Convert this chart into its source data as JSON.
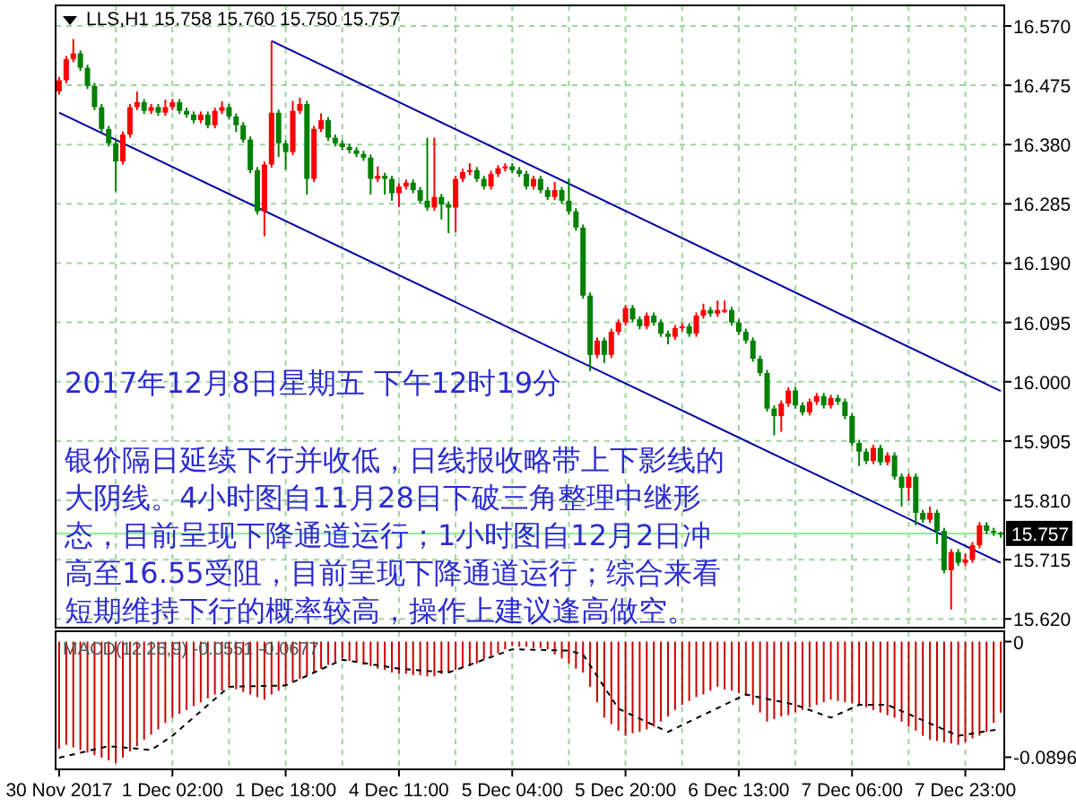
{
  "chart_data": [
    {
      "type": "candlestick",
      "title": "LLS,H1  15.758 15.760 15.750 15.757",
      "categories": [
        null,
        null,
        null,
        null,
        null,
        null,
        null,
        null,
        null,
        null,
        null,
        null,
        null,
        null,
        null,
        null,
        null,
        null,
        null,
        null,
        null,
        null,
        null,
        null,
        null,
        null,
        null,
        null,
        null,
        null,
        null,
        null,
        null,
        null,
        null,
        null,
        null,
        null,
        null,
        null,
        null,
        null,
        null,
        null,
        null,
        null,
        null,
        null,
        null,
        null,
        null,
        null,
        null,
        null,
        null,
        null,
        null,
        null,
        null,
        null,
        null,
        null,
        null,
        null,
        null,
        null,
        null,
        null,
        null,
        null,
        null,
        null,
        null,
        null,
        null,
        null,
        null,
        null,
        null,
        null,
        null,
        null,
        null,
        null,
        null,
        null,
        null,
        null,
        null,
        null,
        null,
        null,
        null,
        null,
        null,
        null,
        null,
        null,
        null,
        null,
        null,
        null,
        null,
        null,
        null,
        null,
        null,
        null,
        null,
        null,
        null,
        null,
        null,
        null,
        null,
        null,
        null,
        null,
        null,
        null,
        null,
        null,
        null,
        null,
        null,
        null,
        null,
        null,
        null,
        null,
        null,
        null,
        null,
        null
      ],
      "ohlc": [
        [
          16.465,
          16.488,
          16.46,
          16.483
        ],
        [
          16.483,
          16.522,
          16.478,
          16.517
        ],
        [
          16.517,
          16.549,
          16.512,
          16.526
        ],
        [
          16.526,
          16.531,
          16.498,
          16.503
        ],
        [
          16.503,
          16.508,
          16.469,
          16.474
        ],
        [
          16.474,
          16.479,
          16.435,
          16.44
        ],
        [
          16.44,
          16.445,
          16.4,
          16.405
        ],
        [
          16.405,
          16.41,
          16.377,
          16.382
        ],
        [
          16.382,
          16.387,
          16.305,
          16.353
        ],
        [
          16.353,
          16.401,
          16.348,
          16.396
        ],
        [
          16.396,
          16.445,
          16.391,
          16.44
        ],
        [
          16.44,
          16.465,
          16.435,
          16.448
        ],
        [
          16.448,
          16.453,
          16.429,
          16.434
        ],
        [
          16.434,
          16.445,
          16.429,
          16.44
        ],
        [
          16.44,
          16.445,
          16.426,
          16.431
        ],
        [
          16.431,
          16.452,
          16.426,
          16.44
        ],
        [
          16.44,
          16.453,
          16.435,
          16.448
        ],
        [
          16.448,
          16.453,
          16.429,
          16.434
        ],
        [
          16.434,
          16.439,
          16.423,
          16.428
        ],
        [
          16.428,
          16.433,
          16.414,
          16.419
        ],
        [
          16.419,
          16.433,
          16.414,
          16.428
        ],
        [
          16.428,
          16.433,
          16.406,
          16.411
        ],
        [
          16.411,
          16.439,
          16.406,
          16.434
        ],
        [
          16.434,
          16.449,
          16.429,
          16.44
        ],
        [
          16.44,
          16.445,
          16.42,
          16.425
        ],
        [
          16.425,
          16.43,
          16.4,
          16.411
        ],
        [
          16.411,
          16.416,
          16.383,
          16.388
        ],
        [
          16.388,
          16.393,
          16.334,
          16.339
        ],
        [
          16.339,
          16.344,
          16.268,
          16.273
        ],
        [
          16.273,
          16.353,
          16.233,
          16.348
        ],
        [
          16.348,
          16.546,
          16.343,
          16.431
        ],
        [
          16.431,
          16.436,
          16.36,
          16.382
        ],
        [
          16.382,
          16.387,
          16.34,
          16.368
        ],
        [
          16.368,
          16.45,
          16.363,
          16.434
        ],
        [
          16.434,
          16.455,
          16.429,
          16.445
        ],
        [
          16.445,
          16.45,
          16.3,
          16.325
        ],
        [
          16.325,
          16.41,
          16.32,
          16.405
        ],
        [
          16.405,
          16.43,
          16.4,
          16.419
        ],
        [
          16.419,
          16.424,
          16.386,
          16.391
        ],
        [
          16.391,
          16.396,
          16.377,
          16.382
        ],
        [
          16.382,
          16.387,
          16.371,
          16.376
        ],
        [
          16.376,
          16.381,
          16.366,
          16.371
        ],
        [
          16.371,
          16.376,
          16.36,
          16.365
        ],
        [
          16.365,
          16.37,
          16.354,
          16.359
        ],
        [
          16.359,
          16.364,
          16.3,
          16.325
        ],
        [
          16.325,
          16.345,
          16.32,
          16.33
        ],
        [
          16.33,
          16.335,
          16.3,
          16.325
        ],
        [
          16.325,
          16.33,
          16.29,
          16.302
        ],
        [
          16.302,
          16.318,
          16.28,
          16.313
        ],
        [
          16.313,
          16.324,
          16.308,
          16.319
        ],
        [
          16.319,
          16.324,
          16.302,
          16.307
        ],
        [
          16.307,
          16.312,
          16.285,
          16.29
        ],
        [
          16.29,
          16.391,
          16.274,
          16.279
        ],
        [
          16.279,
          16.391,
          16.274,
          16.296
        ],
        [
          16.296,
          16.301,
          16.26,
          16.284
        ],
        [
          16.284,
          16.289,
          16.238,
          16.279
        ],
        [
          16.279,
          16.33,
          16.24,
          16.325
        ],
        [
          16.325,
          16.341,
          16.32,
          16.336
        ],
        [
          16.336,
          16.35,
          16.331,
          16.339
        ],
        [
          16.339,
          16.344,
          16.32,
          16.325
        ],
        [
          16.325,
          16.33,
          16.308,
          16.313
        ],
        [
          16.313,
          16.338,
          16.308,
          16.333
        ],
        [
          16.333,
          16.347,
          16.328,
          16.342
        ],
        [
          16.342,
          16.35,
          16.337,
          16.345
        ],
        [
          16.345,
          16.35,
          16.334,
          16.339
        ],
        [
          16.339,
          16.344,
          16.328,
          16.333
        ],
        [
          16.333,
          16.338,
          16.308,
          16.313
        ],
        [
          16.313,
          16.33,
          16.308,
          16.325
        ],
        [
          16.325,
          16.33,
          16.302,
          16.307
        ],
        [
          16.307,
          16.312,
          16.291,
          16.296
        ],
        [
          16.296,
          16.32,
          16.291,
          16.307
        ],
        [
          16.307,
          16.312,
          16.285,
          16.29
        ],
        [
          16.29,
          16.325,
          16.268,
          16.273
        ],
        [
          16.273,
          16.278,
          16.242,
          16.247
        ],
        [
          16.247,
          16.252,
          16.133,
          16.138
        ],
        [
          16.138,
          16.143,
          16.017,
          16.043
        ],
        [
          16.043,
          16.071,
          16.038,
          16.066
        ],
        [
          16.066,
          16.071,
          16.03,
          16.043
        ],
        [
          16.043,
          16.085,
          16.038,
          16.08
        ],
        [
          16.08,
          16.1,
          16.075,
          16.095
        ],
        [
          16.095,
          16.123,
          16.09,
          16.118
        ],
        [
          16.118,
          16.123,
          16.095,
          16.1
        ],
        [
          16.1,
          16.105,
          16.084,
          16.089
        ],
        [
          16.089,
          16.111,
          16.084,
          16.106
        ],
        [
          16.106,
          16.111,
          16.09,
          16.095
        ],
        [
          16.095,
          16.1,
          16.072,
          16.077
        ],
        [
          16.077,
          16.082,
          16.06,
          16.072
        ],
        [
          16.072,
          16.091,
          16.067,
          16.086
        ],
        [
          16.086,
          16.094,
          16.081,
          16.089
        ],
        [
          16.089,
          16.094,
          16.072,
          16.077
        ],
        [
          16.077,
          16.111,
          16.072,
          16.106
        ],
        [
          16.106,
          16.125,
          16.101,
          16.115
        ],
        [
          16.115,
          16.12,
          16.104,
          16.109
        ],
        [
          16.109,
          16.13,
          16.104,
          16.115
        ],
        [
          16.115,
          16.13,
          16.11,
          16.115
        ],
        [
          16.115,
          16.12,
          16.09,
          16.095
        ],
        [
          16.095,
          16.1,
          16.075,
          16.08
        ],
        [
          16.08,
          16.085,
          16.061,
          16.066
        ],
        [
          16.066,
          16.071,
          16.032,
          16.037
        ],
        [
          16.037,
          16.042,
          16.009,
          16.014
        ],
        [
          16.014,
          16.019,
          15.952,
          15.957
        ],
        [
          15.957,
          15.962,
          15.914,
          15.945
        ],
        [
          15.945,
          15.97,
          15.92,
          15.965
        ],
        [
          15.965,
          15.991,
          15.96,
          15.986
        ],
        [
          15.986,
          15.991,
          15.957,
          15.962
        ],
        [
          15.962,
          15.967,
          15.946,
          15.951
        ],
        [
          15.951,
          15.973,
          15.946,
          15.968
        ],
        [
          15.968,
          15.982,
          15.963,
          15.977
        ],
        [
          15.977,
          15.982,
          15.957,
          15.962
        ],
        [
          15.962,
          15.979,
          15.957,
          15.974
        ],
        [
          15.974,
          15.979,
          15.963,
          15.968
        ],
        [
          15.968,
          15.973,
          15.94,
          15.945
        ],
        [
          15.945,
          15.95,
          15.897,
          15.902
        ],
        [
          15.902,
          15.907,
          15.865,
          15.888
        ],
        [
          15.888,
          15.893,
          15.868,
          15.873
        ],
        [
          15.873,
          15.899,
          15.868,
          15.894
        ],
        [
          15.894,
          15.899,
          15.866,
          15.871
        ],
        [
          15.871,
          15.887,
          15.866,
          15.882
        ],
        [
          15.882,
          15.887,
          15.843,
          15.848
        ],
        [
          15.848,
          15.853,
          15.8,
          15.83
        ],
        [
          15.83,
          15.853,
          15.81,
          15.848
        ],
        [
          15.848,
          15.853,
          15.77,
          15.79
        ],
        [
          15.79,
          15.795,
          15.774,
          15.779
        ],
        [
          15.779,
          15.8,
          15.774,
          15.79
        ],
        [
          15.79,
          15.795,
          15.74,
          15.761
        ],
        [
          15.761,
          15.766,
          15.693,
          15.698
        ],
        [
          15.698,
          15.732,
          15.635,
          15.727
        ],
        [
          15.727,
          15.732,
          15.705,
          15.71
        ],
        [
          15.71,
          15.725,
          15.705,
          15.715
        ],
        [
          15.715,
          15.743,
          15.71,
          15.738
        ],
        [
          15.738,
          15.775,
          15.733,
          15.77
        ],
        [
          15.77,
          15.775,
          15.756,
          15.761
        ],
        [
          15.761,
          15.766,
          15.753,
          15.758
        ],
        [
          15.758,
          15.76,
          15.75,
          15.757
        ]
      ],
      "colors": [
        "#ff0000",
        "#ff0000",
        "#ff0000",
        "#008000",
        "#008000",
        "#008000",
        "#008000",
        "#008000",
        "#008000",
        "#ff0000",
        "#ff0000",
        "#ff0000",
        "#008000",
        "#ff0000",
        "#008000",
        "#ff0000",
        "#ff0000",
        "#008000",
        "#008000",
        "#008000",
        "#ff0000",
        "#008000",
        "#ff0000",
        "#ff0000",
        "#008000",
        "#008000",
        "#008000",
        "#008000",
        "#008000",
        "#ff0000",
        "#ff0000",
        "#008000",
        "#008000",
        "#ff0000",
        "#ff0000",
        "#008000",
        "#ff0000",
        "#ff0000",
        "#008000",
        "#008000",
        "#008000",
        "#008000",
        "#008000",
        "#008000",
        "#008000",
        "#ff0000",
        "#008000",
        "#008000",
        "#ff0000",
        "#ff0000",
        "#008000",
        "#008000",
        "#008000",
        "#ff0000",
        "#008000",
        "#008000",
        "#ff0000",
        "#ff0000",
        "#ff0000",
        "#008000",
        "#008000",
        "#ff0000",
        "#ff0000",
        "#ff0000",
        "#008000",
        "#008000",
        "#008000",
        "#ff0000",
        "#008000",
        "#008000",
        "#ff0000",
        "#008000",
        "#008000",
        "#008000",
        "#008000",
        "#008000",
        "#ff0000",
        "#008000",
        "#ff0000",
        "#ff0000",
        "#ff0000",
        "#008000",
        "#008000",
        "#ff0000",
        "#008000",
        "#008000",
        "#008000",
        "#ff0000",
        "#ff0000",
        "#008000",
        "#ff0000",
        "#ff0000",
        "#008000",
        "#ff0000",
        "#ff0000",
        "#008000",
        "#008000",
        "#008000",
        "#008000",
        "#008000",
        "#008000",
        "#008000",
        "#ff0000",
        "#ff0000",
        "#008000",
        "#008000",
        "#ff0000",
        "#ff0000",
        "#008000",
        "#ff0000",
        "#008000",
        "#008000",
        "#008000",
        "#008000",
        "#008000",
        "#ff0000",
        "#008000",
        "#ff0000",
        "#008000",
        "#008000",
        "#ff0000",
        "#008000",
        "#008000",
        "#ff0000",
        "#008000",
        "#008000",
        "#ff0000",
        "#008000",
        "#ff0000",
        "#ff0000",
        "#ff0000",
        "#008000",
        "#008000",
        "#008000"
      ],
      "series": [
        {
          "type": "line",
          "color": "#0000a0",
          "values": [
            null,
            null,
            null,
            null,
            null,
            null,
            null,
            null,
            null,
            null,
            null,
            null,
            null,
            null,
            null,
            null,
            null,
            null,
            null,
            null,
            null,
            null,
            null,
            null,
            null,
            null,
            null,
            null,
            null,
            null,
            16.546,
            null,
            null,
            null,
            null,
            null,
            null,
            null,
            null,
            null,
            null,
            null,
            null,
            null,
            null,
            null,
            null,
            null,
            null,
            null,
            null,
            null,
            null,
            null,
            null,
            null,
            null,
            null,
            null,
            null,
            null,
            null,
            null,
            null,
            null,
            null,
            null,
            null,
            null,
            null,
            null,
            null,
            null,
            null,
            null,
            null,
            null,
            null,
            null,
            null,
            null,
            null,
            null,
            null,
            null,
            null,
            null,
            null,
            null,
            null,
            null,
            null,
            null,
            null,
            null,
            null,
            null,
            null,
            null,
            null,
            null,
            null,
            null,
            null,
            null,
            null,
            null,
            null,
            null,
            null,
            null,
            null,
            null,
            null,
            null,
            null,
            null,
            null,
            null,
            null,
            null,
            null,
            null,
            null,
            null,
            null,
            null,
            null,
            null,
            null,
            null,
            null,
            null,
            15.985
          ]
        },
        {
          "type": "line",
          "color": "#0000a0",
          "values": [
            16.431,
            null,
            null,
            null,
            null,
            null,
            null,
            null,
            null,
            null,
            null,
            null,
            null,
            null,
            null,
            null,
            null,
            null,
            null,
            null,
            null,
            null,
            null,
            null,
            null,
            null,
            null,
            null,
            null,
            null,
            null,
            null,
            null,
            null,
            null,
            null,
            null,
            null,
            null,
            null,
            null,
            null,
            null,
            null,
            null,
            null,
            null,
            null,
            null,
            null,
            null,
            null,
            null,
            null,
            null,
            null,
            null,
            null,
            null,
            null,
            null,
            null,
            null,
            null,
            null,
            null,
            null,
            null,
            null,
            null,
            null,
            null,
            null,
            null,
            null,
            null,
            null,
            null,
            null,
            null,
            null,
            null,
            null,
            null,
            null,
            null,
            null,
            null,
            null,
            null,
            null,
            null,
            null,
            null,
            null,
            null,
            null,
            null,
            null,
            null,
            null,
            null,
            null,
            null,
            null,
            null,
            null,
            null,
            null,
            null,
            null,
            null,
            null,
            null,
            null,
            null,
            null,
            null,
            null,
            null,
            null,
            null,
            null,
            null,
            null,
            null,
            null,
            null,
            null,
            null,
            null,
            null,
            null,
            15.71
          ]
        }
      ],
      "ref_lines": [
        {
          "axis": "y",
          "value": 15.757,
          "label": "15.757",
          "color": "#90ee90"
        }
      ],
      "ylim": [
        15.606,
        16.603
      ],
      "yticks": [
        {
          "value": 15.62,
          "label": "15.620"
        },
        {
          "value": 15.715,
          "label": "15.715"
        },
        {
          "value": 15.81,
          "label": "15.810"
        },
        {
          "value": 15.905,
          "label": "15.905"
        },
        {
          "value": 16.0,
          "label": "16.000"
        },
        {
          "value": 16.095,
          "label": "16.095"
        },
        {
          "value": 16.19,
          "label": "16.190"
        },
        {
          "value": 16.285,
          "label": "16.285"
        },
        {
          "value": 16.38,
          "label": "16.380"
        },
        {
          "value": 16.475,
          "label": "16.475"
        },
        {
          "value": 16.57,
          "label": "16.570"
        }
      ],
      "grid": true,
      "tick_labels": "y",
      "annotations": [
        "2017年12月8日星期五 下午12时19分",
        "银价隔日延续下行并收低，日线报收略带上下影线的",
        "大阴线。4小时图自11月28日下破三角整理中继形",
        "态，目前呈现下降通道运行；1小时图自12月2日冲",
        "高至16.55受阻，目前呈现下降通道运行；综合来看",
        "短期维持下行的概率较高，操作上建议逢高做空。"
      ]
    },
    {
      "type": "bar",
      "title": "MACD(12,26,9) -0.0551 -0.0677",
      "categories": [
        "30 Nov 2017",
        null,
        null,
        null,
        null,
        null,
        null,
        null,
        null,
        null,
        null,
        null,
        null,
        null,
        null,
        null,
        "1 Dec 02:00",
        null,
        null,
        null,
        null,
        null,
        null,
        null,
        null,
        null,
        null,
        null,
        null,
        null,
        null,
        null,
        "1 Dec 18:00",
        null,
        null,
        null,
        null,
        null,
        null,
        null,
        null,
        null,
        null,
        null,
        null,
        null,
        null,
        null,
        "4 Dec 11:00",
        null,
        null,
        null,
        null,
        null,
        null,
        null,
        null,
        null,
        null,
        null,
        null,
        null,
        null,
        null,
        "5 Dec 04:00",
        null,
        null,
        null,
        null,
        null,
        null,
        null,
        null,
        null,
        null,
        null,
        null,
        null,
        null,
        null,
        "5 Dec 20:00",
        null,
        null,
        null,
        null,
        null,
        null,
        null,
        null,
        null,
        null,
        null,
        null,
        null,
        null,
        null,
        "6 Dec 13:00",
        null,
        null,
        null,
        null,
        null,
        null,
        null,
        null,
        null,
        null,
        null,
        null,
        null,
        null,
        null,
        "7 Dec 06:00",
        null,
        null,
        null,
        null,
        null,
        null,
        null,
        null,
        null,
        null,
        null,
        null,
        null,
        null,
        null,
        "7 Dec 23:00",
        null,
        null,
        null,
        null,
        null
      ],
      "series": [
        {
          "type": "bar",
          "color": "#cc0000",
          "values": [
            -0.083,
            -0.08,
            -0.082,
            -0.084,
            -0.086,
            -0.088,
            -0.09,
            -0.092,
            -0.094,
            -0.09,
            -0.085,
            -0.081,
            -0.076,
            -0.072,
            -0.068,
            -0.063,
            -0.059,
            -0.056,
            -0.053,
            -0.05,
            -0.047,
            -0.044,
            -0.041,
            -0.038,
            -0.035,
            -0.037,
            -0.039,
            -0.041,
            -0.043,
            -0.045,
            -0.041,
            -0.038,
            -0.034,
            -0.031,
            -0.029,
            -0.026,
            -0.024,
            -0.021,
            -0.018,
            -0.016,
            -0.013,
            -0.015,
            -0.016,
            -0.018,
            -0.019,
            -0.021,
            -0.022,
            -0.024,
            -0.025,
            -0.025,
            -0.026,
            -0.026,
            -0.027,
            -0.027,
            -0.025,
            -0.024,
            -0.022,
            -0.02,
            -0.019,
            -0.017,
            -0.014,
            -0.011,
            -0.009,
            -0.006,
            -0.003,
            -0.004,
            -0.004,
            -0.005,
            -0.005,
            -0.006,
            -0.01,
            -0.013,
            -0.017,
            -0.021,
            -0.024,
            -0.035,
            -0.047,
            -0.059,
            -0.064,
            -0.069,
            -0.073,
            -0.071,
            -0.07,
            -0.068,
            -0.066,
            -0.062,
            -0.058,
            -0.053,
            -0.049,
            -0.046,
            -0.043,
            -0.041,
            -0.038,
            -0.035,
            -0.037,
            -0.038,
            -0.04,
            -0.042,
            -0.049,
            -0.055,
            -0.062,
            -0.06,
            -0.058,
            -0.057,
            -0.055,
            -0.053,
            -0.051,
            -0.049,
            -0.047,
            -0.045,
            -0.046,
            -0.047,
            -0.048,
            -0.049,
            -0.051,
            -0.053,
            -0.055,
            -0.057,
            -0.059,
            -0.062,
            -0.066,
            -0.069,
            -0.073,
            -0.076,
            -0.077,
            -0.078,
            -0.079,
            -0.08,
            -0.078,
            -0.075,
            -0.073,
            -0.07,
            -0.063,
            -0.0551
          ]
        },
        {
          "type": "line",
          "color": "#000000",
          "line_style": "dashed",
          "values": [
            -0.09,
            null,
            null,
            null,
            null,
            null,
            null,
            -0.081,
            null,
            null,
            null,
            null,
            null,
            -0.084,
            null,
            null,
            -0.073,
            null,
            null,
            null,
            null,
            null,
            null,
            null,
            -0.035,
            null,
            null,
            null,
            null,
            null,
            null,
            null,
            -0.034,
            null,
            null,
            null,
            null,
            null,
            null,
            null,
            -0.014,
            null,
            null,
            null,
            null,
            null,
            null,
            null,
            -0.021,
            null,
            null,
            null,
            null,
            null,
            null,
            -0.024,
            null,
            null,
            null,
            null,
            null,
            null,
            null,
            null,
            -0.006,
            null,
            null,
            null,
            null,
            null,
            null,
            null,
            -0.007,
            null,
            -0.01,
            null,
            null,
            null,
            null,
            -0.052,
            null,
            null,
            null,
            null,
            null,
            null,
            -0.07,
            null,
            null,
            null,
            null,
            null,
            null,
            null,
            null,
            null,
            null,
            -0.041,
            null,
            null,
            null,
            null,
            null,
            null,
            -0.049,
            null,
            null,
            null,
            null,
            -0.059,
            null,
            null,
            null,
            -0.049,
            null,
            null,
            null,
            -0.049,
            null,
            null,
            null,
            null,
            null,
            null,
            null,
            null,
            null,
            -0.073,
            null,
            null,
            null,
            null,
            null,
            -0.0677
          ]
        }
      ],
      "ylim": [
        -0.099,
        0.008
      ],
      "yticks": [
        0,
        -0.0896
      ],
      "grid": "x"
    }
  ]
}
